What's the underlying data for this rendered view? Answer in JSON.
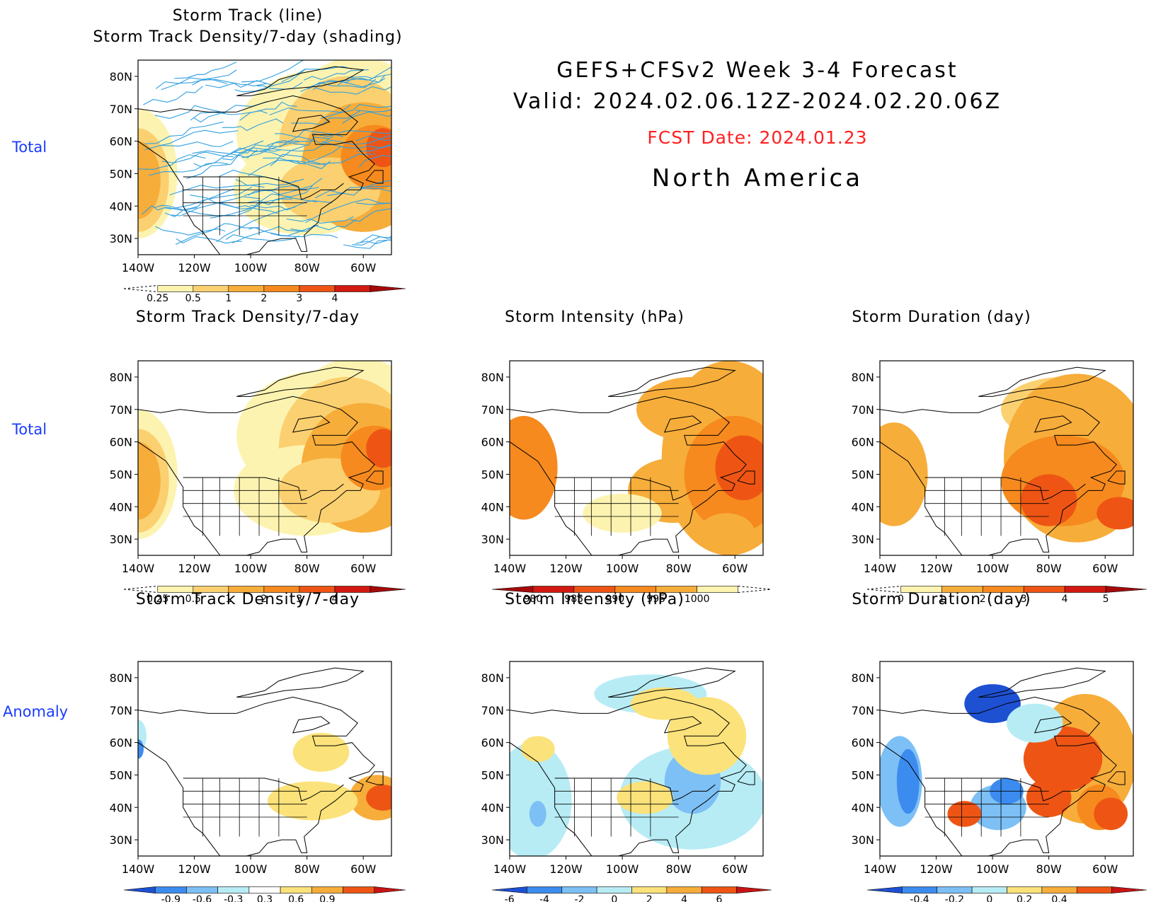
{
  "header": {
    "title": "GEFS+CFSv2  Week 3-4 Forecast",
    "valid": "Valid: 2024.02.06.12Z-2024.02.20.06Z",
    "fcst_date": "FCST Date: 2024.01.23",
    "region": "North America"
  },
  "row_labels": [
    "Total",
    "Total",
    "Anomaly"
  ],
  "axes": {
    "lat_ticks": [
      "80N",
      "70N",
      "60N",
      "50N",
      "40N",
      "30N"
    ],
    "lon_ticks": [
      "140W",
      "120W",
      "100W",
      "80W",
      "60W"
    ]
  },
  "chart_data": [
    {
      "id": "track",
      "type": "heatmap",
      "title_lines": [
        "Storm Track (line)",
        "Storm Track Density/7-day (shading)"
      ],
      "colorbar": {
        "labels": [
          "0.25",
          "0.5",
          "1",
          "2",
          "3",
          "4"
        ],
        "colors": [
          "#fdf3b0",
          "#fbd070",
          "#f7ad3a",
          "#f68a1e",
          "#ee5515",
          "#d21a12",
          "#a50a0a"
        ],
        "left_dashed": true
      },
      "field": "density",
      "tracks": true
    },
    {
      "id": "density_total",
      "type": "heatmap",
      "title": "Storm Track Density/7-day",
      "colorbar": {
        "labels": [
          "0.25",
          "0.5",
          "1",
          "2",
          "3",
          "4"
        ],
        "colors": [
          "#fdf3b0",
          "#fbd070",
          "#f7ad3a",
          "#f68a1e",
          "#ee5515",
          "#d21a12",
          "#a50a0a"
        ],
        "left_dashed": true
      },
      "field": "density"
    },
    {
      "id": "intensity_total",
      "type": "heatmap",
      "title": "Storm Intensity (hPa)",
      "colorbar": {
        "labels": [
          "980",
          "985",
          "990",
          "995",
          "1000"
        ],
        "colors": [
          "#a50a0a",
          "#d21a12",
          "#ee5515",
          "#f68a1e",
          "#f7ad3a",
          "#fdf3b0"
        ],
        "right_dashed": true
      },
      "field": "intensity"
    },
    {
      "id": "duration_total",
      "type": "heatmap",
      "title": "Storm Duration (day)",
      "colorbar": {
        "labels": [
          "0",
          "1",
          "2",
          "3",
          "4",
          "5"
        ],
        "colors": [
          "#fdf3b0",
          "#f7ad3a",
          "#f68a1e",
          "#ee5515",
          "#d21a12",
          "#a50a0a"
        ],
        "left_dashed": true
      },
      "field": "duration"
    },
    {
      "id": "density_anom",
      "type": "heatmap",
      "title": "Storm Track Density/7-day",
      "colorbar": {
        "labels": [
          "-0.9",
          "-0.6",
          "-0.3",
          "0.3",
          "0.6",
          "0.9"
        ],
        "colors": [
          "#1e50d2",
          "#3c8cf0",
          "#7dc0f5",
          "#b7ecf5",
          "#ffffff",
          "#fbe27a",
          "#f7ad3a",
          "#ee5515",
          "#c81414"
        ]
      },
      "field": "density_anom"
    },
    {
      "id": "intensity_anom",
      "type": "heatmap",
      "title": "Storm Intensity (hPa)",
      "colorbar": {
        "labels": [
          "-6",
          "-4",
          "-2",
          "0",
          "2",
          "4",
          "6"
        ],
        "colors": [
          "#1e50d2",
          "#3c8cf0",
          "#7dc0f5",
          "#b7ecf5",
          "#fbe27a",
          "#f7ad3a",
          "#ee5515",
          "#c81414"
        ]
      },
      "field": "intensity_anom"
    },
    {
      "id": "duration_anom",
      "type": "heatmap",
      "title": "Storm Duration (day)",
      "colorbar": {
        "labels": [
          "-0.4",
          "-0.2",
          "0",
          "0.2",
          "0.4"
        ],
        "colors": [
          "#1e50d2",
          "#3c8cf0",
          "#7dc0f5",
          "#b7ecf5",
          "#fbe27a",
          "#f7ad3a",
          "#ee5515",
          "#c81414"
        ]
      },
      "field": "duration_anom"
    }
  ]
}
